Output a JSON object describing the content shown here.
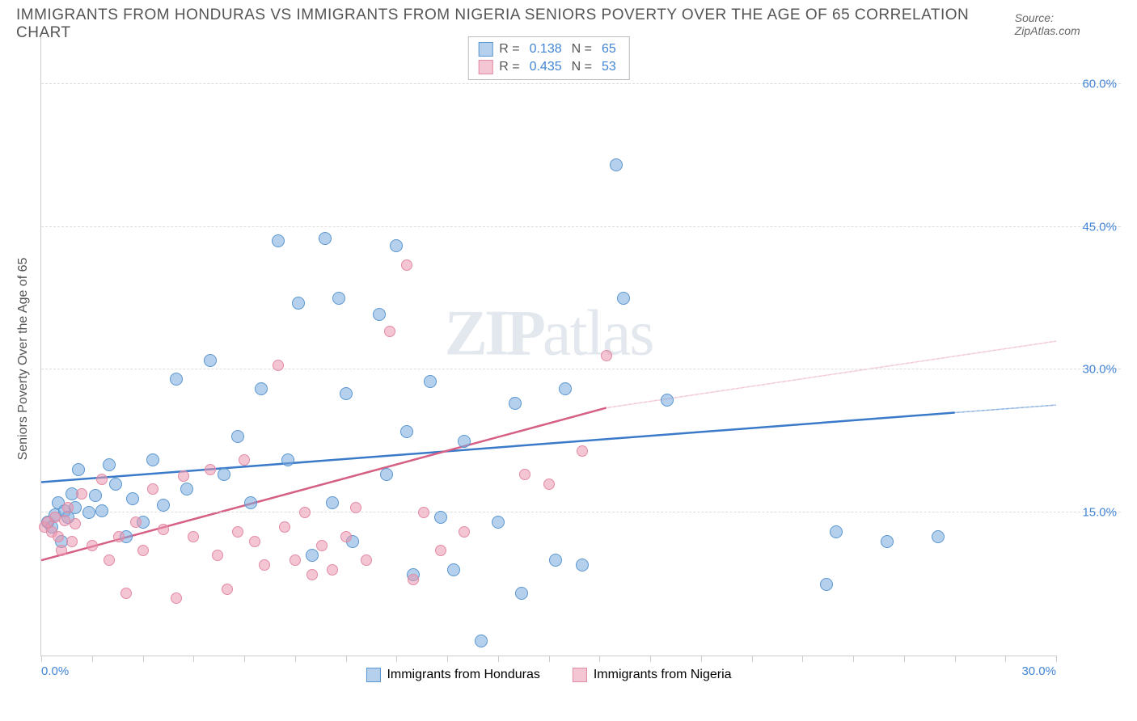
{
  "header": {
    "title": "IMMIGRANTS FROM HONDURAS VS IMMIGRANTS FROM NIGERIA SENIORS POVERTY OVER THE AGE OF 65 CORRELATION CHART",
    "source_label": "Source: ",
    "source_value": "ZipAtlas.com"
  },
  "chart": {
    "type": "scatter",
    "y_axis_label": "Seniors Poverty Over the Age of 65",
    "xlim": [
      0,
      30
    ],
    "ylim": [
      0,
      65
    ],
    "y_ticks": [
      15,
      30,
      45,
      60
    ],
    "y_tick_labels": [
      "15.0%",
      "30.0%",
      "45.0%",
      "60.0%"
    ],
    "x_ticks_minor": [
      0,
      1.5,
      3,
      4.5,
      6,
      7.5,
      9,
      10.5,
      12,
      13.5,
      15,
      16.5,
      18,
      19.5,
      21,
      22.5,
      24,
      25.5,
      27,
      28.5,
      30
    ],
    "x_tick_labels": [
      {
        "pos": 0,
        "text": "0.0%",
        "align": "left"
      },
      {
        "pos": 30,
        "text": "30.0%",
        "align": "right"
      }
    ],
    "background_color": "#ffffff",
    "grid_color": "#dddddd",
    "axis_color": "#cccccc",
    "tick_label_color": "#4285d4",
    "axis_label_color": "#555555",
    "axis_label_fontsize": 16,
    "series": [
      {
        "name": "Immigrants from Honduras",
        "fill_color": "rgba(120,170,220,0.55)",
        "stroke_color": "#5a96d0",
        "trend_color": "#3a7ac8",
        "trend_dashed_color": "#3a7ac8",
        "marker_radius": 8,
        "R": 0.138,
        "N": 65,
        "trend": {
          "x1": 0,
          "y1": 18.2,
          "x2_solid": 27,
          "y2_solid": 25.5,
          "x2": 30,
          "y2": 26.3
        },
        "points": [
          [
            0.2,
            14.0
          ],
          [
            0.3,
            13.5
          ],
          [
            0.4,
            14.8
          ],
          [
            0.5,
            16.0
          ],
          [
            0.6,
            12.0
          ],
          [
            0.7,
            15.2
          ],
          [
            0.8,
            14.5
          ],
          [
            0.9,
            17.0
          ],
          [
            1.0,
            15.5
          ],
          [
            1.1,
            19.5
          ],
          [
            1.4,
            15.0
          ],
          [
            1.6,
            16.8
          ],
          [
            1.8,
            15.2
          ],
          [
            2.0,
            20.0
          ],
          [
            2.2,
            18.0
          ],
          [
            2.5,
            12.5
          ],
          [
            2.7,
            16.5
          ],
          [
            3.0,
            14.0
          ],
          [
            3.3,
            20.5
          ],
          [
            3.6,
            15.8
          ],
          [
            4.0,
            29.0
          ],
          [
            4.3,
            17.5
          ],
          [
            5.0,
            31.0
          ],
          [
            5.4,
            19.0
          ],
          [
            5.8,
            23.0
          ],
          [
            6.2,
            16.0
          ],
          [
            6.5,
            28.0
          ],
          [
            7.0,
            43.5
          ],
          [
            7.3,
            20.5
          ],
          [
            7.6,
            37.0
          ],
          [
            8.0,
            10.5
          ],
          [
            8.4,
            43.8
          ],
          [
            8.6,
            16.0
          ],
          [
            8.8,
            37.5
          ],
          [
            9.0,
            27.5
          ],
          [
            9.2,
            12.0
          ],
          [
            10.0,
            35.8
          ],
          [
            10.2,
            19.0
          ],
          [
            10.5,
            43.0
          ],
          [
            10.8,
            23.5
          ],
          [
            11.0,
            8.5
          ],
          [
            11.5,
            28.8
          ],
          [
            11.8,
            14.5
          ],
          [
            12.2,
            9.0
          ],
          [
            12.5,
            22.5
          ],
          [
            13.0,
            1.5
          ],
          [
            13.5,
            14.0
          ],
          [
            14.0,
            26.5
          ],
          [
            14.2,
            6.5
          ],
          [
            15.2,
            10.0
          ],
          [
            15.5,
            28.0
          ],
          [
            16.0,
            9.5
          ],
          [
            17.0,
            51.5
          ],
          [
            17.2,
            37.5
          ],
          [
            18.5,
            26.8
          ],
          [
            23.2,
            7.5
          ],
          [
            23.5,
            13.0
          ],
          [
            25.0,
            12.0
          ],
          [
            26.5,
            12.5
          ]
        ]
      },
      {
        "name": "Immigrants from Nigeria",
        "fill_color": "rgba(235,150,175,0.55)",
        "stroke_color": "#e28ba4",
        "trend_color": "#d65f84",
        "trend_dashed_color": "#e9a0b5",
        "marker_radius": 7,
        "R": 0.435,
        "N": 53,
        "trend": {
          "x1": 0,
          "y1": 10.0,
          "x2_solid": 16.7,
          "y2_solid": 26.0,
          "x2": 30,
          "y2": 33.0
        },
        "points": [
          [
            0.1,
            13.5
          ],
          [
            0.2,
            14.0
          ],
          [
            0.3,
            13.0
          ],
          [
            0.4,
            14.5
          ],
          [
            0.5,
            12.5
          ],
          [
            0.6,
            11.0
          ],
          [
            0.7,
            14.2
          ],
          [
            0.8,
            15.5
          ],
          [
            0.9,
            12.0
          ],
          [
            1.0,
            13.8
          ],
          [
            1.2,
            17.0
          ],
          [
            1.5,
            11.5
          ],
          [
            1.8,
            18.5
          ],
          [
            2.0,
            10.0
          ],
          [
            2.3,
            12.5
          ],
          [
            2.5,
            6.5
          ],
          [
            2.8,
            14.0
          ],
          [
            3.0,
            11.0
          ],
          [
            3.3,
            17.5
          ],
          [
            3.6,
            13.2
          ],
          [
            4.0,
            6.0
          ],
          [
            4.2,
            18.8
          ],
          [
            4.5,
            12.5
          ],
          [
            5.0,
            19.5
          ],
          [
            5.2,
            10.5
          ],
          [
            5.5,
            7.0
          ],
          [
            5.8,
            13.0
          ],
          [
            6.0,
            20.5
          ],
          [
            6.3,
            12.0
          ],
          [
            6.6,
            9.5
          ],
          [
            7.0,
            30.5
          ],
          [
            7.2,
            13.5
          ],
          [
            7.5,
            10.0
          ],
          [
            7.8,
            15.0
          ],
          [
            8.0,
            8.5
          ],
          [
            8.3,
            11.5
          ],
          [
            8.6,
            9.0
          ],
          [
            9.0,
            12.5
          ],
          [
            9.3,
            15.5
          ],
          [
            9.6,
            10.0
          ],
          [
            10.3,
            34.0
          ],
          [
            10.8,
            41.0
          ],
          [
            11.0,
            8.0
          ],
          [
            11.3,
            15.0
          ],
          [
            11.8,
            11.0
          ],
          [
            12.5,
            13.0
          ],
          [
            14.3,
            19.0
          ],
          [
            15.0,
            18.0
          ],
          [
            16.0,
            21.5
          ],
          [
            16.7,
            31.5
          ]
        ]
      }
    ],
    "legend_top": {
      "r_label": "R =",
      "n_label": "N ="
    },
    "watermark": {
      "zip": "ZIP",
      "atlas": "atlas"
    }
  }
}
